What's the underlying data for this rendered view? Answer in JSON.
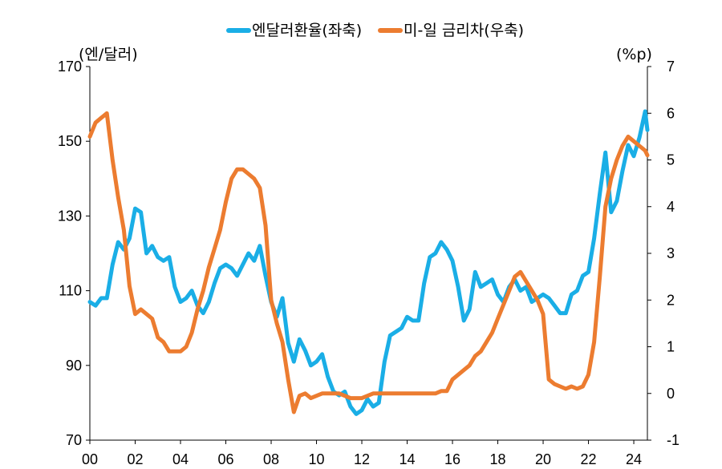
{
  "chart_data": {
    "type": "line",
    "legend": {
      "placement": "top-center",
      "items": [
        {
          "label": "엔달러환율(좌축)",
          "color": "#1aaee6"
        },
        {
          "label": "미-일 금리차(우축)",
          "color": "#ec7c30"
        }
      ]
    },
    "left_axis": {
      "unit_label": "(엔/달러)",
      "ylim": [
        70,
        170
      ],
      "ticks": [
        70,
        90,
        110,
        130,
        150,
        170
      ]
    },
    "right_axis": {
      "unit_label": "(%p)",
      "ylim": [
        -1,
        7
      ],
      "ticks": [
        -1,
        0,
        1,
        2,
        3,
        4,
        5,
        6,
        7
      ]
    },
    "x_axis": {
      "xlim": [
        2000,
        2024.6
      ],
      "ticks": [
        2000,
        2002,
        2004,
        2006,
        2008,
        2010,
        2012,
        2014,
        2016,
        2018,
        2020,
        2022,
        2024
      ],
      "tick_labels": [
        "00",
        "02",
        "04",
        "06",
        "08",
        "10",
        "12",
        "14",
        "16",
        "18",
        "20",
        "22",
        "24"
      ]
    },
    "grid": false,
    "series": [
      {
        "name": "엔달러환율(좌축)",
        "axis": "left",
        "color": "#1aaee6",
        "points": [
          [
            2000.0,
            107
          ],
          [
            2000.25,
            106
          ],
          [
            2000.5,
            108
          ],
          [
            2000.75,
            108
          ],
          [
            2001.0,
            117
          ],
          [
            2001.25,
            123
          ],
          [
            2001.5,
            121
          ],
          [
            2001.75,
            124
          ],
          [
            2002.0,
            132
          ],
          [
            2002.25,
            131
          ],
          [
            2002.5,
            120
          ],
          [
            2002.75,
            122
          ],
          [
            2003.0,
            119
          ],
          [
            2003.25,
            118
          ],
          [
            2003.5,
            119
          ],
          [
            2003.75,
            111
          ],
          [
            2004.0,
            107
          ],
          [
            2004.25,
            108
          ],
          [
            2004.5,
            110
          ],
          [
            2004.75,
            106
          ],
          [
            2005.0,
            104
          ],
          [
            2005.25,
            107
          ],
          [
            2005.5,
            112
          ],
          [
            2005.75,
            116
          ],
          [
            2006.0,
            117
          ],
          [
            2006.25,
            116
          ],
          [
            2006.5,
            114
          ],
          [
            2006.75,
            117
          ],
          [
            2007.0,
            120
          ],
          [
            2007.25,
            118
          ],
          [
            2007.5,
            122
          ],
          [
            2007.75,
            114
          ],
          [
            2008.0,
            107
          ],
          [
            2008.25,
            103
          ],
          [
            2008.5,
            108
          ],
          [
            2008.75,
            96
          ],
          [
            2009.0,
            91
          ],
          [
            2009.25,
            97
          ],
          [
            2009.5,
            94
          ],
          [
            2009.75,
            90
          ],
          [
            2010.0,
            91
          ],
          [
            2010.25,
            93
          ],
          [
            2010.5,
            87
          ],
          [
            2010.75,
            83
          ],
          [
            2011.0,
            82
          ],
          [
            2011.25,
            83
          ],
          [
            2011.5,
            79
          ],
          [
            2011.75,
            77
          ],
          [
            2012.0,
            78
          ],
          [
            2012.25,
            81
          ],
          [
            2012.5,
            79
          ],
          [
            2012.75,
            80
          ],
          [
            2013.0,
            91
          ],
          [
            2013.25,
            98
          ],
          [
            2013.5,
            99
          ],
          [
            2013.75,
            100
          ],
          [
            2014.0,
            103
          ],
          [
            2014.25,
            102
          ],
          [
            2014.5,
            102
          ],
          [
            2014.75,
            112
          ],
          [
            2015.0,
            119
          ],
          [
            2015.25,
            120
          ],
          [
            2015.5,
            123
          ],
          [
            2015.75,
            121
          ],
          [
            2016.0,
            118
          ],
          [
            2016.25,
            111
          ],
          [
            2016.5,
            102
          ],
          [
            2016.75,
            105
          ],
          [
            2017.0,
            115
          ],
          [
            2017.25,
            111
          ],
          [
            2017.5,
            112
          ],
          [
            2017.75,
            113
          ],
          [
            2018.0,
            109
          ],
          [
            2018.25,
            107
          ],
          [
            2018.5,
            111
          ],
          [
            2018.75,
            113
          ],
          [
            2019.0,
            110
          ],
          [
            2019.25,
            111
          ],
          [
            2019.5,
            107
          ],
          [
            2019.75,
            108
          ],
          [
            2020.0,
            109
          ],
          [
            2020.25,
            108
          ],
          [
            2020.5,
            106
          ],
          [
            2020.75,
            104
          ],
          [
            2021.0,
            104
          ],
          [
            2021.25,
            109
          ],
          [
            2021.5,
            110
          ],
          [
            2021.75,
            114
          ],
          [
            2022.0,
            115
          ],
          [
            2022.25,
            124
          ],
          [
            2022.5,
            136
          ],
          [
            2022.75,
            147
          ],
          [
            2023.0,
            131
          ],
          [
            2023.25,
            134
          ],
          [
            2023.5,
            142
          ],
          [
            2023.75,
            149
          ],
          [
            2024.0,
            146
          ],
          [
            2024.25,
            151
          ],
          [
            2024.5,
            158
          ],
          [
            2024.6,
            153
          ]
        ]
      },
      {
        "name": "미-일 금리차(우축)",
        "axis": "right",
        "color": "#ec7c30",
        "points": [
          [
            2000.0,
            5.5
          ],
          [
            2000.25,
            5.8
          ],
          [
            2000.5,
            5.9
          ],
          [
            2000.75,
            6.0
          ],
          [
            2001.0,
            5.0
          ],
          [
            2001.25,
            4.2
          ],
          [
            2001.5,
            3.5
          ],
          [
            2001.75,
            2.3
          ],
          [
            2002.0,
            1.7
          ],
          [
            2002.25,
            1.8
          ],
          [
            2002.5,
            1.7
          ],
          [
            2002.75,
            1.6
          ],
          [
            2003.0,
            1.2
          ],
          [
            2003.25,
            1.1
          ],
          [
            2003.5,
            0.9
          ],
          [
            2003.75,
            0.9
          ],
          [
            2004.0,
            0.9
          ],
          [
            2004.25,
            1.0
          ],
          [
            2004.5,
            1.3
          ],
          [
            2004.75,
            1.8
          ],
          [
            2005.0,
            2.2
          ],
          [
            2005.25,
            2.7
          ],
          [
            2005.5,
            3.1
          ],
          [
            2005.75,
            3.5
          ],
          [
            2006.0,
            4.1
          ],
          [
            2006.25,
            4.6
          ],
          [
            2006.5,
            4.8
          ],
          [
            2006.75,
            4.8
          ],
          [
            2007.0,
            4.7
          ],
          [
            2007.25,
            4.6
          ],
          [
            2007.5,
            4.4
          ],
          [
            2007.75,
            3.6
          ],
          [
            2008.0,
            2.0
          ],
          [
            2008.25,
            1.5
          ],
          [
            2008.5,
            1.1
          ],
          [
            2008.75,
            0.3
          ],
          [
            2009.0,
            -0.4
          ],
          [
            2009.25,
            -0.05
          ],
          [
            2009.5,
            0.0
          ],
          [
            2009.75,
            -0.1
          ],
          [
            2010.0,
            -0.05
          ],
          [
            2010.25,
            0.0
          ],
          [
            2010.5,
            0.0
          ],
          [
            2010.75,
            0.0
          ],
          [
            2011.0,
            0.0
          ],
          [
            2011.25,
            -0.05
          ],
          [
            2011.5,
            -0.1
          ],
          [
            2011.75,
            -0.1
          ],
          [
            2012.0,
            -0.1
          ],
          [
            2012.25,
            -0.05
          ],
          [
            2012.5,
            0.0
          ],
          [
            2012.75,
            0.0
          ],
          [
            2013.0,
            0.0
          ],
          [
            2013.25,
            0.0
          ],
          [
            2013.5,
            0.0
          ],
          [
            2013.75,
            0.0
          ],
          [
            2014.0,
            0.0
          ],
          [
            2014.25,
            0.0
          ],
          [
            2014.5,
            0.0
          ],
          [
            2014.75,
            0.0
          ],
          [
            2015.0,
            0.0
          ],
          [
            2015.25,
            0.0
          ],
          [
            2015.5,
            0.05
          ],
          [
            2015.75,
            0.05
          ],
          [
            2016.0,
            0.3
          ],
          [
            2016.25,
            0.4
          ],
          [
            2016.5,
            0.5
          ],
          [
            2016.75,
            0.6
          ],
          [
            2017.0,
            0.8
          ],
          [
            2017.25,
            0.9
          ],
          [
            2017.5,
            1.1
          ],
          [
            2017.75,
            1.3
          ],
          [
            2018.0,
            1.6
          ],
          [
            2018.25,
            1.9
          ],
          [
            2018.5,
            2.2
          ],
          [
            2018.75,
            2.5
          ],
          [
            2019.0,
            2.6
          ],
          [
            2019.25,
            2.4
          ],
          [
            2019.5,
            2.2
          ],
          [
            2019.75,
            2.0
          ],
          [
            2020.0,
            1.7
          ],
          [
            2020.25,
            0.3
          ],
          [
            2020.5,
            0.2
          ],
          [
            2020.75,
            0.15
          ],
          [
            2021.0,
            0.1
          ],
          [
            2021.25,
            0.15
          ],
          [
            2021.5,
            0.1
          ],
          [
            2021.75,
            0.15
          ],
          [
            2022.0,
            0.4
          ],
          [
            2022.25,
            1.1
          ],
          [
            2022.5,
            2.5
          ],
          [
            2022.75,
            4.0
          ],
          [
            2023.0,
            4.6
          ],
          [
            2023.25,
            5.0
          ],
          [
            2023.5,
            5.3
          ],
          [
            2023.75,
            5.5
          ],
          [
            2024.0,
            5.4
          ],
          [
            2024.25,
            5.3
          ],
          [
            2024.5,
            5.2
          ],
          [
            2024.6,
            5.1
          ]
        ]
      }
    ]
  }
}
